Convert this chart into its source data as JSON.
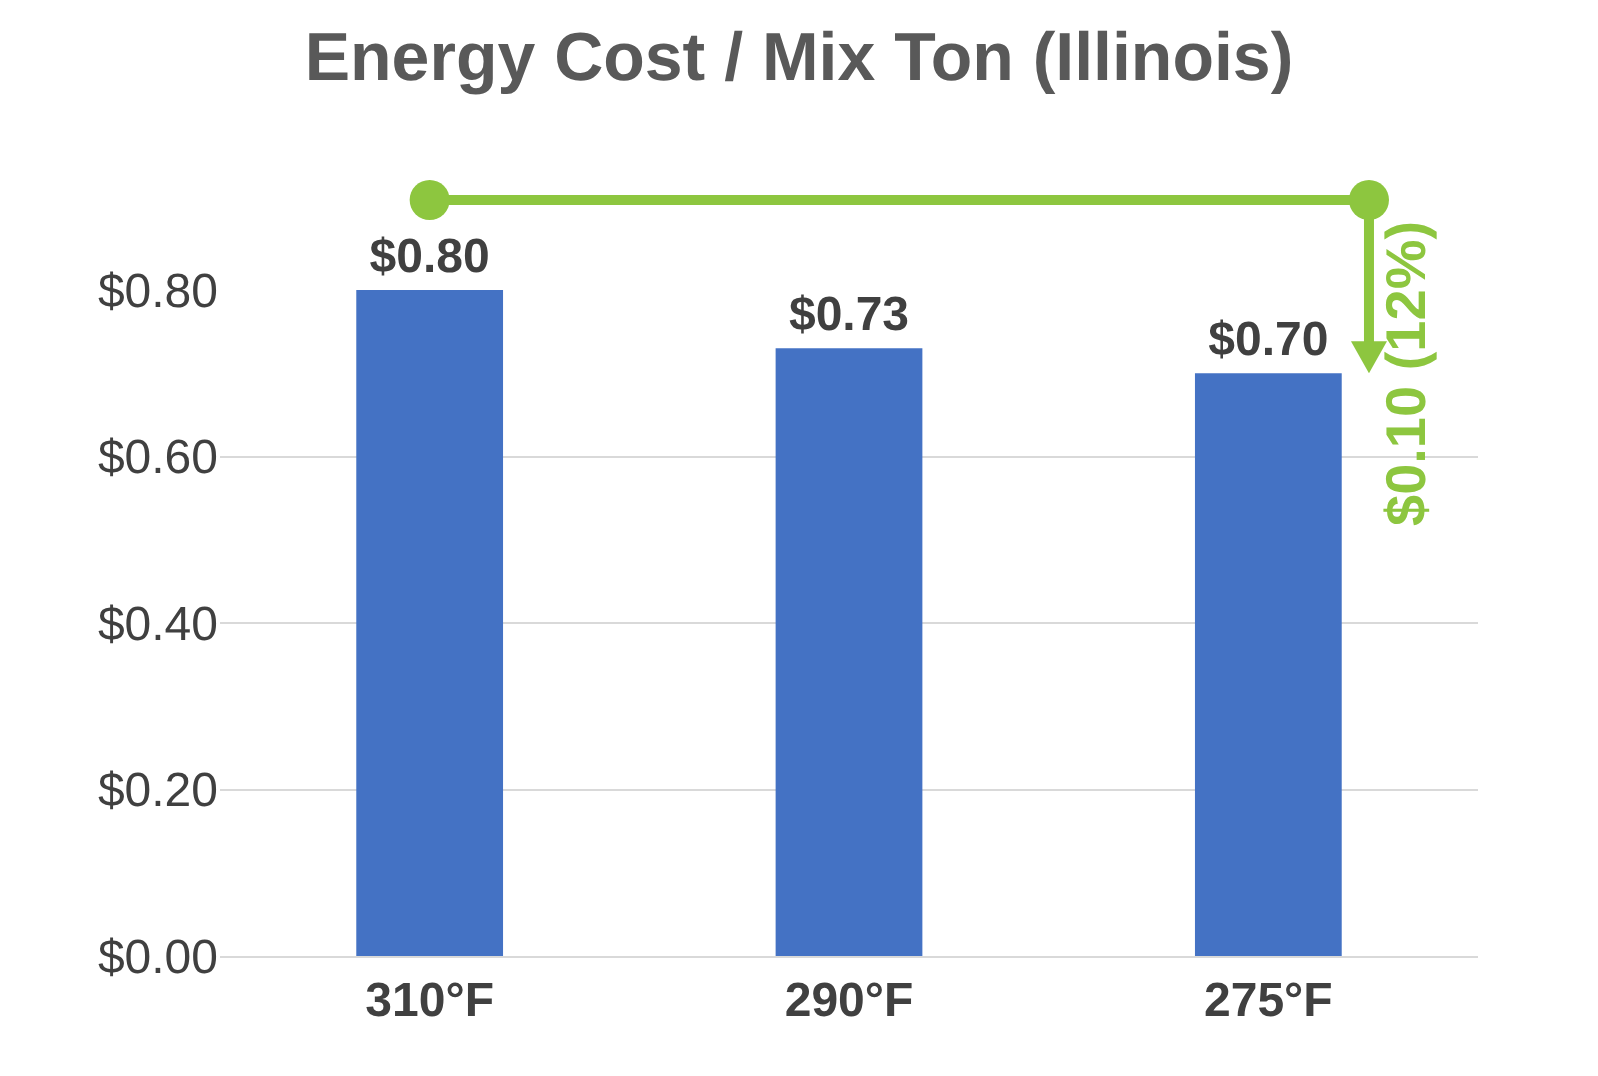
{
  "chart_data": {
    "type": "bar",
    "title": "Energy Cost / Mix Ton (Illinois)",
    "categories": [
      "310°F",
      "290°F",
      "275°F"
    ],
    "values": [
      0.8,
      0.73,
      0.7
    ],
    "value_labels": [
      "$0.80",
      "$0.73",
      "$0.70"
    ],
    "color": "#4472c4",
    "ylim": [
      0,
      0.8
    ],
    "yticks": [
      {
        "value": 0,
        "label": "$0.00"
      },
      {
        "value": 0.2,
        "label": "$0.20"
      },
      {
        "value": 0.4,
        "label": "$0.40"
      },
      {
        "value": 0.6,
        "label": "$0.60"
      },
      {
        "value": 0.8,
        "label": "$0.80"
      }
    ],
    "grid": "y",
    "legend": false,
    "annotations": [
      "$0.10 (12%)"
    ]
  }
}
